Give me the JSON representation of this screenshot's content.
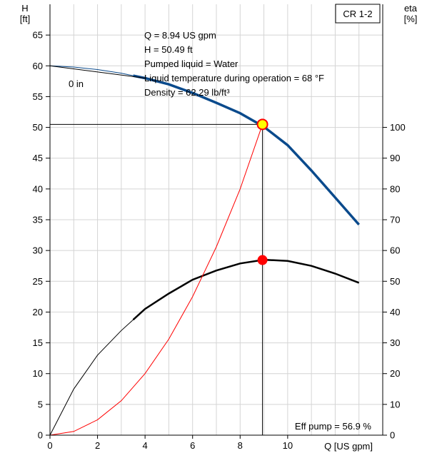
{
  "chart_data": {
    "type": "line",
    "model_label": "CR 1-2",
    "x_axis": {
      "label": "Q [US gpm]",
      "range": [
        0,
        14
      ],
      "ticks": [
        0,
        2,
        4,
        6,
        8,
        10
      ]
    },
    "y_left_axis": {
      "label_line1": "H",
      "label_line2": "[ft]",
      "range": [
        0,
        70
      ],
      "ticks": [
        0,
        5,
        10,
        15,
        20,
        25,
        30,
        35,
        40,
        45,
        50,
        55,
        60,
        65
      ]
    },
    "y_right_axis": {
      "label_line1": "eta",
      "label_line2": "[%]",
      "range": [
        0,
        140
      ],
      "ticks": [
        0,
        10,
        20,
        30,
        40,
        50,
        60,
        70,
        80,
        90,
        100
      ]
    },
    "grid": true,
    "info_lines": [
      "Q = 8.94 US gpm",
      "H = 50.49 ft",
      "Pumped liquid = Water",
      "Liquid temperature during operation = 68 °F",
      "Density = 62.29 lb/ft³"
    ],
    "impeller_label": "0 in",
    "efficiency_label": "Eff pump = 56.9 %",
    "duty_point": {
      "q": 8.94,
      "h": 50.49,
      "eta": 56.9
    },
    "series": [
      {
        "key": "head",
        "axis": "left",
        "color": "#0a4a8c",
        "points": [
          [
            0,
            60
          ],
          [
            1,
            59.8
          ],
          [
            2,
            59.4
          ],
          [
            3,
            58.8
          ],
          [
            4,
            58.0
          ],
          [
            5,
            57.0
          ],
          [
            6,
            55.6
          ],
          [
            7,
            54.0
          ],
          [
            8,
            52.3
          ],
          [
            9,
            50.1
          ],
          [
            10,
            47.1
          ],
          [
            11,
            43.0
          ],
          [
            12,
            38.6
          ],
          [
            13,
            34.2
          ]
        ],
        "thick_from": 3.5
      },
      {
        "key": "efficiency",
        "axis": "right",
        "color": "#000000",
        "points": [
          [
            0,
            0
          ],
          [
            1,
            15
          ],
          [
            2,
            26
          ],
          [
            3,
            34
          ],
          [
            4,
            41
          ],
          [
            5,
            46
          ],
          [
            6,
            50.5
          ],
          [
            7,
            53.5
          ],
          [
            8,
            55.8
          ],
          [
            9,
            57
          ],
          [
            10,
            56.6
          ],
          [
            11,
            55
          ],
          [
            12,
            52.5
          ],
          [
            13,
            49.5
          ]
        ],
        "thick_from": 3.5
      },
      {
        "key": "system",
        "axis": "left",
        "color": "#ff0000",
        "points": [
          [
            0,
            0
          ],
          [
            1,
            0.6
          ],
          [
            2,
            2.5
          ],
          [
            3,
            5.6
          ],
          [
            4,
            10
          ],
          [
            5,
            15.6
          ],
          [
            6,
            22.5
          ],
          [
            7,
            30.6
          ],
          [
            8,
            40
          ],
          [
            8.94,
            50.49
          ]
        ]
      }
    ]
  }
}
